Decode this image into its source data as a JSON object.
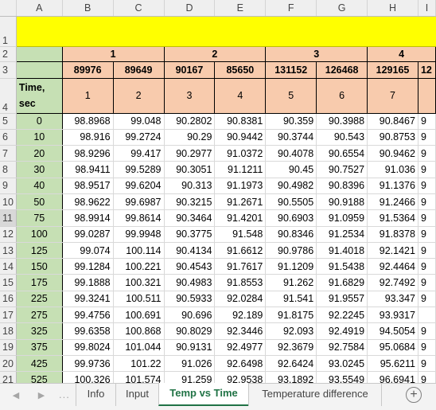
{
  "columns": [
    "A",
    "B",
    "C",
    "D",
    "E",
    "F",
    "G",
    "H",
    "I"
  ],
  "row_numbers": [
    "1",
    "2",
    "3",
    "4",
    "5",
    "6",
    "7",
    "8",
    "9",
    "10",
    "11",
    "12",
    "13",
    "14",
    "15",
    "16",
    "17",
    "18",
    "19",
    "20",
    "21"
  ],
  "selected_row": "11",
  "groups": [
    "1",
    "2",
    "3",
    "4"
  ],
  "ids": [
    "89976",
    "89649",
    "90167",
    "85650",
    "131152",
    "126468",
    "129165",
    "12"
  ],
  "index_row": [
    "1",
    "2",
    "3",
    "4",
    "5",
    "6",
    "7",
    ""
  ],
  "time_header": {
    "line1": "Time,",
    "line2": "sec"
  },
  "data_rows": [
    {
      "time": "0",
      "values": [
        "98.8968",
        "99.048",
        "90.2802",
        "90.8381",
        "90.359",
        "90.3988",
        "90.8467",
        "9"
      ]
    },
    {
      "time": "10",
      "values": [
        "98.916",
        "99.2724",
        "90.29",
        "90.9442",
        "90.3744",
        "90.543",
        "90.8753",
        "9"
      ]
    },
    {
      "time": "20",
      "values": [
        "98.9296",
        "99.417",
        "90.2977",
        "91.0372",
        "90.4078",
        "90.6554",
        "90.9462",
        "9"
      ]
    },
    {
      "time": "30",
      "values": [
        "98.9411",
        "99.5289",
        "90.3051",
        "91.1211",
        "90.45",
        "90.7527",
        "91.036",
        "9"
      ]
    },
    {
      "time": "40",
      "values": [
        "98.9517",
        "99.6204",
        "90.313",
        "91.1973",
        "90.4982",
        "90.8396",
        "91.1376",
        "9"
      ]
    },
    {
      "time": "50",
      "values": [
        "98.9622",
        "99.6987",
        "90.3215",
        "91.2671",
        "90.5505",
        "90.9188",
        "91.2466",
        "9"
      ]
    },
    {
      "time": "75",
      "values": [
        "98.9914",
        "99.8614",
        "90.3464",
        "91.4201",
        "90.6903",
        "91.0959",
        "91.5364",
        "9"
      ]
    },
    {
      "time": "100",
      "values": [
        "99.0287",
        "99.9948",
        "90.3775",
        "91.548",
        "90.8346",
        "91.2534",
        "91.8378",
        "9"
      ]
    },
    {
      "time": "125",
      "values": [
        "99.074",
        "100.114",
        "90.4134",
        "91.6612",
        "90.9786",
        "91.4018",
        "92.1421",
        "9"
      ]
    },
    {
      "time": "150",
      "values": [
        "99.1284",
        "100.221",
        "90.4543",
        "91.7617",
        "91.1209",
        "91.5438",
        "92.4464",
        "9"
      ]
    },
    {
      "time": "175",
      "values": [
        "99.1888",
        "100.321",
        "90.4983",
        "91.8553",
        "91.262",
        "91.6829",
        "92.7492",
        "9"
      ]
    },
    {
      "time": "225",
      "values": [
        "99.3241",
        "100.511",
        "90.5933",
        "92.0284",
        "91.541",
        "91.9557",
        "93.347",
        "9"
      ]
    },
    {
      "time": "275",
      "values": [
        "99.4756",
        "100.691",
        "90.696",
        "92.189",
        "91.8175",
        "92.2245",
        "93.9317",
        ""
      ]
    },
    {
      "time": "325",
      "values": [
        "99.6358",
        "100.868",
        "90.8029",
        "92.3446",
        "92.093",
        "92.4919",
        "94.5054",
        "9"
      ]
    },
    {
      "time": "375",
      "values": [
        "99.8024",
        "101.044",
        "90.9131",
        "92.4977",
        "92.3679",
        "92.7584",
        "95.0684",
        "9"
      ]
    },
    {
      "time": "425",
      "values": [
        "99.9736",
        "101.22",
        "91.026",
        "92.6498",
        "92.6424",
        "93.0245",
        "95.6211",
        "9"
      ]
    },
    {
      "time": "525",
      "values": [
        "100.326",
        "101.574",
        "91.259",
        "92.9538",
        "93.1892",
        "93.5549",
        "96.6941",
        "9"
      ]
    }
  ],
  "tabs": [
    {
      "label": "Info",
      "active": false
    },
    {
      "label": "Input",
      "active": false
    },
    {
      "label": "Temp vs Time",
      "active": true
    },
    {
      "label": "Temperature difference",
      "active": false
    }
  ],
  "tabbar": {
    "prev": "◀",
    "next": "▶",
    "more": "...",
    "add": "+"
  },
  "colors": {
    "header_fill": "#f8cbad",
    "time_col_fill": "#c6e0b4",
    "title_row_fill": "#ffff00",
    "active_tab": "#217346"
  }
}
